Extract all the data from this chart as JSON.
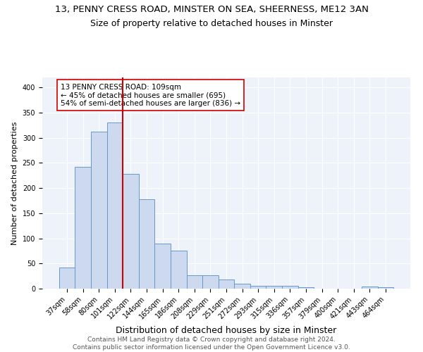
{
  "title1": "13, PENNY CRESS ROAD, MINSTER ON SEA, SHEERNESS, ME12 3AN",
  "title2": "Size of property relative to detached houses in Minster",
  "xlabel": "Distribution of detached houses by size in Minster",
  "ylabel": "Number of detached properties",
  "categories": [
    "37sqm",
    "58sqm",
    "80sqm",
    "101sqm",
    "122sqm",
    "144sqm",
    "165sqm",
    "186sqm",
    "208sqm",
    "229sqm",
    "251sqm",
    "272sqm",
    "293sqm",
    "315sqm",
    "336sqm",
    "357sqm",
    "379sqm",
    "400sqm",
    "421sqm",
    "443sqm",
    "464sqm"
  ],
  "values": [
    42,
    242,
    312,
    330,
    228,
    178,
    90,
    75,
    27,
    27,
    18,
    10,
    5,
    6,
    5,
    3,
    0,
    0,
    0,
    4,
    3
  ],
  "bar_color": "#ccd9ee",
  "bar_edge_color": "#6699cc",
  "vline_x_idx": 3.5,
  "vline_color": "#cc0000",
  "annotation_text": "13 PENNY CRESS ROAD: 109sqm\n← 45% of detached houses are smaller (695)\n54% of semi-detached houses are larger (836) →",
  "annotation_box_color": "white",
  "annotation_box_edge": "#cc0000",
  "footer": "Contains HM Land Registry data © Crown copyright and database right 2024.\nContains public sector information licensed under the Open Government Licence v3.0.",
  "ylim": [
    0,
    420
  ],
  "bg_color": "#eef2fb",
  "grid_color": "#ffffff",
  "title1_fontsize": 9.5,
  "title2_fontsize": 9,
  "xlabel_fontsize": 9,
  "ylabel_fontsize": 8,
  "tick_fontsize": 7,
  "annot_fontsize": 7.5,
  "footer_fontsize": 6.5
}
